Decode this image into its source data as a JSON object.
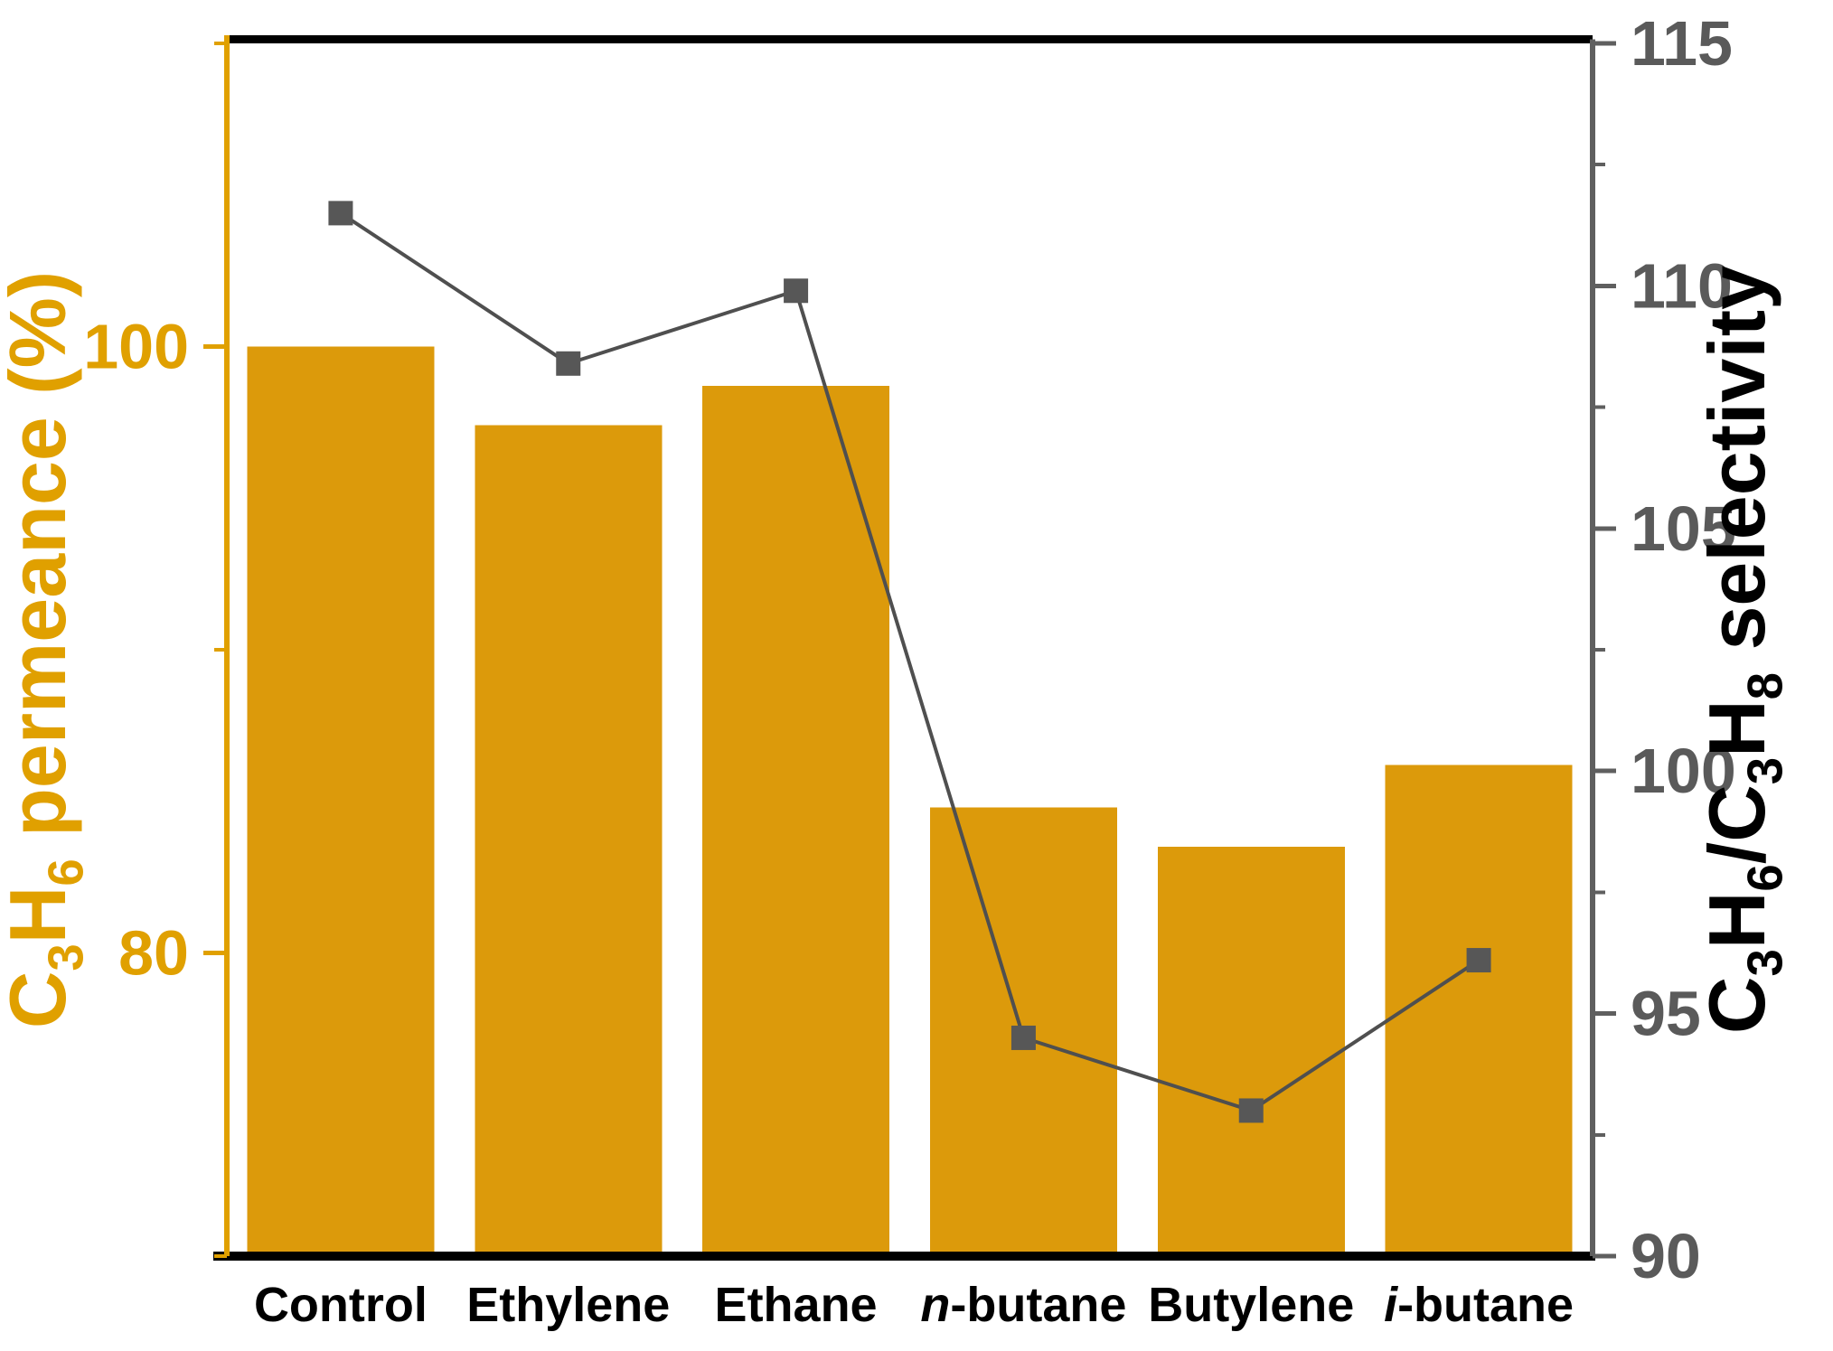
{
  "chart_data": {
    "type": "bar",
    "subtype": "bar+line-dual-axis",
    "title": "",
    "legend": "none",
    "grid": false,
    "background": "#FFFFFF",
    "categories": [
      {
        "label": "Control",
        "parts": [
          {
            "t": "Control"
          }
        ]
      },
      {
        "label": "Ethylene",
        "parts": [
          {
            "t": "Ethylene"
          }
        ]
      },
      {
        "label": "Ethane",
        "parts": [
          {
            "t": "Ethane"
          }
        ]
      },
      {
        "label": "n-butane",
        "parts": [
          {
            "t": "n",
            "italic": true
          },
          {
            "t": "-butane"
          }
        ]
      },
      {
        "label": "Butylene",
        "parts": [
          {
            "t": "Butylene"
          }
        ]
      },
      {
        "label": "i-butane",
        "parts": [
          {
            "t": "i",
            "italic": true
          },
          {
            "t": "-butane"
          }
        ]
      }
    ],
    "series": [
      {
        "name": "C3H6 permeance (%)",
        "type": "bar",
        "axis": "left",
        "color": "#DC9A0B",
        "values": [
          100.0,
          97.4,
          98.7,
          84.8,
          83.5,
          86.2
        ]
      },
      {
        "name": "C3H6/C3H8 selectivity",
        "type": "line",
        "axis": "right",
        "marker": "square",
        "line_color": "#4F4F4F",
        "marker_color": "#575757",
        "values": [
          111.5,
          108.4,
          109.9,
          94.5,
          93.0,
          96.1
        ]
      }
    ],
    "left_axis": {
      "label": "C3H6 permeance (%)",
      "label_parts": [
        {
          "t": "C"
        },
        {
          "t": "3",
          "sub": true
        },
        {
          "t": "H"
        },
        {
          "t": "6",
          "sub": true
        },
        {
          "t": " permeance (%)"
        }
      ],
      "min": 70,
      "max": 110,
      "major_ticks": [
        80,
        100
      ],
      "minor_ticks": [
        70,
        90,
        110
      ],
      "color": "#E0A000"
    },
    "right_axis": {
      "label": "C3H6/C3H8 selectivity",
      "label_parts": [
        {
          "t": "C"
        },
        {
          "t": "3",
          "sub": true
        },
        {
          "t": "H"
        },
        {
          "t": "6",
          "sub": true
        },
        {
          "t": "/C"
        },
        {
          "t": "3",
          "sub": true
        },
        {
          "t": "H"
        },
        {
          "t": "8",
          "sub": true
        },
        {
          "t": " selectivity"
        }
      ],
      "min": 90,
      "max": 115,
      "major_ticks": [
        90,
        95,
        100,
        105,
        110,
        115
      ],
      "minor_ticks": [
        92.5,
        97.5,
        102.5,
        107.5,
        112.5
      ],
      "axis_color": "#5F5F5F",
      "tick_label_color": "#5A5A5A",
      "label_color": "#000000"
    },
    "x_axis": {
      "color": "#000000"
    }
  }
}
